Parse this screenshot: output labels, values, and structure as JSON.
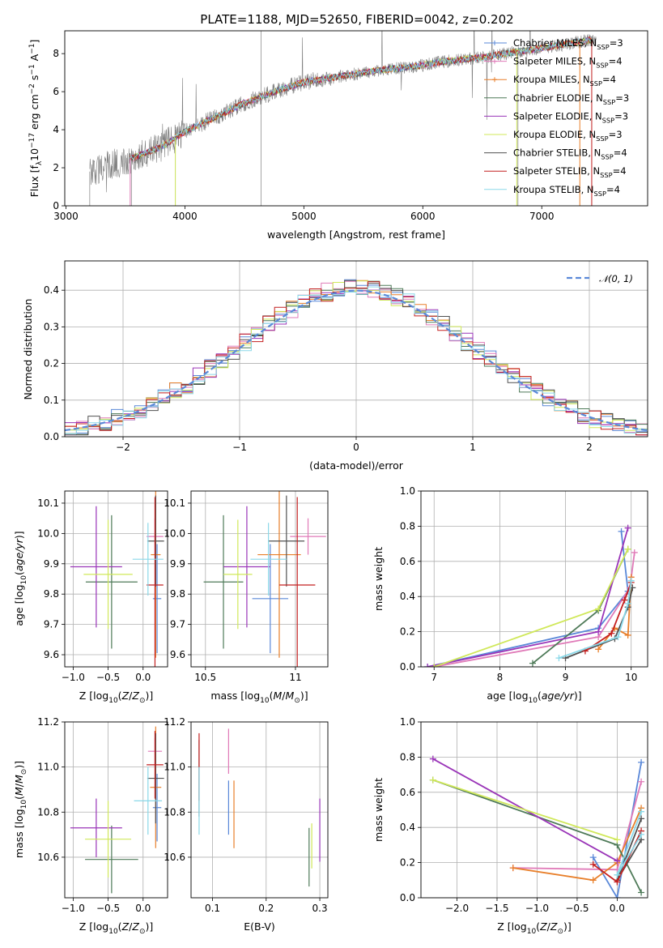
{
  "figure_title": "PLATE=1188, MJD=52650, FIBERID=0042, z=0.202",
  "colors": {
    "Chabrier MILES": "#5a88d8",
    "Salpeter MILES": "#e07ab8",
    "Kroupa MILES": "#e87f2a",
    "Chabrier ELODIE": "#4e7a58",
    "Salpeter ELODIE": "#9a35b8",
    "Kroupa ELODIE": "#d0e85a",
    "Chabrier STELIB": "#505050",
    "Salpeter STELIB": "#c42020",
    "Kroupa STELIB": "#8ad8e8",
    "data": "#808080",
    "normal": "#5a88d8"
  },
  "chart_data": [
    {
      "type": "line",
      "id": "spectrum",
      "title": "PLATE=1188, MJD=52650, FIBERID=0042, z=0.202",
      "xlabel": "wavelength [Angstrom, rest frame]",
      "ylabel": "Flux [f_λ 10^-17 erg cm^-2 s^-1 A^-1]",
      "xlim": [
        2990,
        7890
      ],
      "ylim": [
        0,
        9.2
      ],
      "xticks": [
        3000,
        4000,
        5000,
        6000,
        7000
      ],
      "yticks": [
        0,
        2,
        4,
        6,
        8
      ],
      "legend": [
        "Chabrier MILES, N_SSP=3",
        "Salpeter MILES, N_SSP=4",
        "Kroupa MILES, N_SSP=4",
        "Chabrier ELODIE, N_SSP=3",
        "Salpeter ELODIE, N_SSP=3",
        "Kroupa ELODIE, N_SSP=3",
        "Chabrier STELIB, N_SSP=4",
        "Salpeter STELIB, N_SSP=4",
        "Kroupa STELIB, N_SSP=4"
      ],
      "legend_loc": "right",
      "continuum": {
        "x": [
          3200,
          3400,
          3600,
          3800,
          4000,
          4200,
          4500,
          4800,
          5000,
          5300,
          5600,
          5900,
          6200,
          6500,
          6800,
          7100,
          7400,
          7500
        ],
        "y": [
          1.8,
          2.2,
          2.6,
          3.1,
          3.9,
          4.5,
          5.4,
          6.1,
          6.5,
          6.8,
          7.1,
          7.3,
          7.6,
          7.8,
          8.1,
          8.4,
          8.7,
          8.8
        ]
      },
      "data_range": [
        3200,
        7460
      ],
      "model_range": [
        3540,
        7420
      ]
    },
    {
      "type": "line",
      "id": "residuals",
      "xlabel": "(data-model)/error",
      "ylabel": "Normed distribution",
      "xlim": [
        -2.5,
        2.5
      ],
      "ylim": [
        0,
        0.48
      ],
      "xticks": [
        -2,
        -1,
        0,
        1,
        2
      ],
      "yticks": [
        0.0,
        0.1,
        0.2,
        0.3,
        0.4
      ],
      "legend": [
        "𝒩(0, 1)"
      ],
      "legend_loc": "upper right",
      "normal": {
        "mean": 0,
        "sigma": 1
      },
      "bin_width": 0.1
    },
    {
      "type": "scatter",
      "id": "age_vs_Z",
      "xlabel": "Z [log10(Z/Z⊙)]",
      "ylabel": "age [log10(age/yr)]",
      "xlim": [
        -1.12,
        0.35
      ],
      "ylim": [
        9.56,
        10.14
      ],
      "xticks": [
        -1.0,
        -0.5,
        0.0
      ],
      "xtick_labels": [
        "−1.0",
        "−0.5",
        "0.0"
      ],
      "yticks": [
        9.6,
        9.7,
        9.8,
        9.9,
        10.0,
        10.1
      ],
      "points": [
        {
          "model": "Chabrier MILES",
          "x": 0.2,
          "xerr": 0.06,
          "y": 9.785,
          "yerr": 0.18
        },
        {
          "model": "Salpeter MILES",
          "x": 0.17,
          "xerr": 0.12,
          "y": 9.99,
          "yerr": 0.06
        },
        {
          "model": "Kroupa MILES",
          "x": 0.18,
          "xerr": 0.07,
          "y": 9.93,
          "yerr": 0.34
        },
        {
          "model": "Chabrier ELODIE",
          "x": -0.45,
          "xerr": 0.37,
          "y": 9.84,
          "yerr": 0.22
        },
        {
          "model": "Salpeter ELODIE",
          "x": -0.67,
          "xerr": 0.37,
          "y": 9.89,
          "yerr": 0.2
        },
        {
          "model": "Kroupa ELODIE",
          "x": -0.5,
          "xerr": 0.35,
          "y": 9.865,
          "yerr": 0.18
        },
        {
          "model": "Chabrier STELIB",
          "x": 0.18,
          "xerr": 0.12,
          "y": 9.975,
          "yerr": 0.15
        },
        {
          "model": "Salpeter STELIB",
          "x": 0.17,
          "xerr": 0.12,
          "y": 9.83,
          "yerr": 0.29
        },
        {
          "model": "Kroupa STELIB",
          "x": 0.07,
          "xerr": 0.22,
          "y": 9.915,
          "yerr": 0.12
        }
      ]
    },
    {
      "type": "scatter",
      "id": "age_vs_mass",
      "xlabel": "mass [log10(M/M⊙)]",
      "ylabel": "",
      "xlim": [
        10.42,
        11.18
      ],
      "ylim": [
        9.56,
        10.14
      ],
      "xticks": [
        10.5,
        11.0
      ],
      "yticks": [
        9.6,
        9.7,
        9.8,
        9.9,
        10.0,
        10.1
      ],
      "points": [
        {
          "model": "Chabrier MILES",
          "x": 10.86,
          "xerr": 0.1,
          "y": 9.785,
          "yerr": 0.18
        },
        {
          "model": "Salpeter MILES",
          "x": 11.07,
          "xerr": 0.1,
          "y": 9.99,
          "yerr": 0.06
        },
        {
          "model": "Kroupa MILES",
          "x": 10.91,
          "xerr": 0.12,
          "y": 9.93,
          "yerr": 0.34
        },
        {
          "model": "Chabrier ELODIE",
          "x": 10.6,
          "xerr": 0.11,
          "y": 9.84,
          "yerr": 0.22
        },
        {
          "model": "Salpeter ELODIE",
          "x": 10.73,
          "xerr": 0.13,
          "y": 9.89,
          "yerr": 0.2
        },
        {
          "model": "Kroupa ELODIE",
          "x": 10.68,
          "xerr": 0.08,
          "y": 9.865,
          "yerr": 0.18
        },
        {
          "model": "Chabrier STELIB",
          "x": 10.95,
          "xerr": 0.1,
          "y": 9.975,
          "yerr": 0.15
        },
        {
          "model": "Salpeter STELIB",
          "x": 11.01,
          "xerr": 0.1,
          "y": 9.83,
          "yerr": 0.29
        },
        {
          "model": "Kroupa STELIB",
          "x": 10.85,
          "xerr": 0.1,
          "y": 9.915,
          "yerr": 0.12
        }
      ]
    },
    {
      "type": "line",
      "id": "mass_weight_vs_age",
      "xlabel": "age [log10(age/yr)]",
      "ylabel": "mass weight",
      "xlim": [
        6.8,
        10.25
      ],
      "ylim": [
        0,
        1.0
      ],
      "xticks": [
        7,
        8,
        9,
        10
      ],
      "yticks": [
        0.0,
        0.2,
        0.4,
        0.6,
        0.8,
        1.0
      ],
      "series": [
        {
          "name": "Chabrier MILES",
          "x": [
            9.85,
            9.95,
            9.5,
            6.9
          ],
          "y": [
            0.77,
            0.43,
            0.22,
            0.0
          ]
        },
        {
          "name": "Salpeter MILES",
          "x": [
            10.05,
            9.98,
            9.5,
            7.0
          ],
          "y": [
            0.65,
            0.45,
            0.17,
            0.0
          ]
        },
        {
          "name": "Kroupa MILES",
          "x": [
            10.0,
            9.95,
            9.75,
            9.5
          ],
          "y": [
            0.51,
            0.18,
            0.22,
            0.1
          ]
        },
        {
          "name": "Chabrier ELODIE",
          "x": [
            9.95,
            9.5,
            8.5
          ],
          "y": [
            0.67,
            0.32,
            0.02
          ]
        },
        {
          "name": "Salpeter ELODIE",
          "x": [
            9.95,
            9.5,
            6.9
          ],
          "y": [
            0.79,
            0.2,
            0.0
          ]
        },
        {
          "name": "Kroupa ELODIE",
          "x": [
            9.95,
            9.5,
            7.0
          ],
          "y": [
            0.67,
            0.33,
            0.0
          ]
        },
        {
          "name": "Chabrier STELIB",
          "x": [
            10.02,
            9.95,
            9.75,
            9.0
          ],
          "y": [
            0.45,
            0.34,
            0.16,
            0.05
          ]
        },
        {
          "name": "Salpeter STELIB",
          "x": [
            10.0,
            9.9,
            9.7,
            9.3
          ],
          "y": [
            0.48,
            0.38,
            0.19,
            0.09
          ]
        },
        {
          "name": "Kroupa STELIB",
          "x": [
            10.0,
            9.95,
            9.8,
            8.9
          ],
          "y": [
            0.49,
            0.36,
            0.17,
            0.05
          ]
        }
      ]
    },
    {
      "type": "scatter",
      "id": "mass_vs_Z",
      "xlabel": "Z [log10(Z/Z⊙)]",
      "ylabel": "mass [log10(M/M⊙)]",
      "xlim": [
        -1.12,
        0.35
      ],
      "ylim": [
        10.42,
        11.2
      ],
      "xticks": [
        -1.0,
        -0.5,
        0.0
      ],
      "xtick_labels": [
        "−1.0",
        "−0.5",
        "0.0"
      ],
      "yticks": [
        10.6,
        10.8,
        11.0,
        11.2
      ],
      "points": [
        {
          "model": "Chabrier MILES",
          "x": 0.2,
          "xerr": 0.06,
          "y": 10.82,
          "yerr": 0.15
        },
        {
          "model": "Salpeter MILES",
          "x": 0.17,
          "xerr": 0.1,
          "y": 11.07,
          "yerr": 0.06
        },
        {
          "model": "Kroupa MILES",
          "x": 0.18,
          "xerr": 0.08,
          "y": 10.91,
          "yerr": 0.27
        },
        {
          "model": "Chabrier ELODIE",
          "x": -0.45,
          "xerr": 0.38,
          "y": 10.59,
          "yerr": 0.15
        },
        {
          "model": "Salpeter ELODIE",
          "x": -0.67,
          "xerr": 0.37,
          "y": 10.73,
          "yerr": 0.13
        },
        {
          "model": "Kroupa ELODIE",
          "x": -0.5,
          "xerr": 0.33,
          "y": 10.68,
          "yerr": 0.17
        },
        {
          "model": "Chabrier STELIB",
          "x": 0.18,
          "xerr": 0.12,
          "y": 10.95,
          "yerr": 0.2
        },
        {
          "model": "Salpeter STELIB",
          "x": 0.17,
          "xerr": 0.12,
          "y": 11.01,
          "yerr": 0.15
        },
        {
          "model": "Kroupa STELIB",
          "x": 0.07,
          "xerr": 0.2,
          "y": 10.85,
          "yerr": 0.15
        }
      ]
    },
    {
      "type": "scatter",
      "id": "mass_vs_ebv",
      "xlabel": "E(B-V)",
      "ylabel": "",
      "xlim": [
        0.06,
        0.315
      ],
      "ylim": [
        10.42,
        11.2
      ],
      "xticks": [
        0.1,
        0.2,
        0.3
      ],
      "yticks": [
        10.6,
        10.8,
        11.0,
        11.2
      ],
      "points": [
        {
          "model": "Chabrier MILES",
          "x": 0.13,
          "y": 10.82,
          "yerr": 0.12
        },
        {
          "model": "Salpeter MILES",
          "x": 0.13,
          "y": 11.07,
          "yerr": 0.1
        },
        {
          "model": "Kroupa MILES",
          "x": 0.14,
          "y": 10.79,
          "yerr": 0.15
        },
        {
          "model": "Chabrier ELODIE",
          "x": 0.28,
          "y": 10.6,
          "yerr": 0.13
        },
        {
          "model": "Salpeter ELODIE",
          "x": 0.3,
          "y": 10.72,
          "yerr": 0.14
        },
        {
          "model": "Kroupa ELODIE",
          "x": 0.285,
          "y": 10.65,
          "yerr": 0.1
        },
        {
          "model": "Chabrier STELIB",
          "x": 0.075,
          "y": 10.95,
          "yerr": 0.17
        },
        {
          "model": "Salpeter STELIB",
          "x": 0.075,
          "y": 11.0,
          "yerr": 0.15
        },
        {
          "model": "Kroupa STELIB",
          "x": 0.075,
          "y": 10.85,
          "yerr": 0.15
        }
      ]
    },
    {
      "type": "line",
      "id": "mass_weight_vs_Z",
      "xlabel": "Z [log10(Z/Z⊙)]",
      "ylabel": "mass weight",
      "xlim": [
        -2.45,
        0.38
      ],
      "ylim": [
        0,
        1.0
      ],
      "xticks": [
        -2.0,
        -1.5,
        -1.0,
        -0.5,
        0.0
      ],
      "xtick_labels": [
        "−2.0",
        "−1.5",
        "−1.0",
        "−0.5",
        "0.0"
      ],
      "yticks": [
        0.0,
        0.2,
        0.4,
        0.6,
        0.8,
        1.0
      ],
      "series": [
        {
          "name": "Chabrier MILES",
          "x": [
            0.3,
            0.0,
            -0.3
          ],
          "y": [
            0.77,
            0.0,
            0.23
          ]
        },
        {
          "name": "Salpeter MILES",
          "x": [
            0.3,
            0.0,
            -1.3
          ],
          "y": [
            0.66,
            0.16,
            0.17
          ]
        },
        {
          "name": "Kroupa MILES",
          "x": [
            0.3,
            0.0,
            -0.3,
            -1.3
          ],
          "y": [
            0.51,
            0.2,
            0.1,
            0.17
          ]
        },
        {
          "name": "Chabrier ELODIE",
          "x": [
            0.3,
            0.0,
            -2.3
          ],
          "y": [
            0.03,
            0.3,
            0.67
          ]
        },
        {
          "name": "Salpeter ELODIE",
          "x": [
            0.0,
            -2.3
          ],
          "y": [
            0.21,
            0.79
          ]
        },
        {
          "name": "Kroupa ELODIE",
          "x": [
            0.0,
            -2.3
          ],
          "y": [
            0.33,
            0.67
          ]
        },
        {
          "name": "Chabrier STELIB",
          "x": [
            0.3,
            0.0,
            0.3
          ],
          "y": [
            0.45,
            0.1,
            0.33
          ]
        },
        {
          "name": "Salpeter STELIB",
          "x": [
            0.3,
            0.0,
            -0.3
          ],
          "y": [
            0.38,
            0.09,
            0.19
          ]
        },
        {
          "name": "Kroupa STELIB",
          "x": [
            0.3,
            0.0,
            0.3
          ],
          "y": [
            0.49,
            0.13,
            0.36
          ]
        }
      ]
    }
  ]
}
